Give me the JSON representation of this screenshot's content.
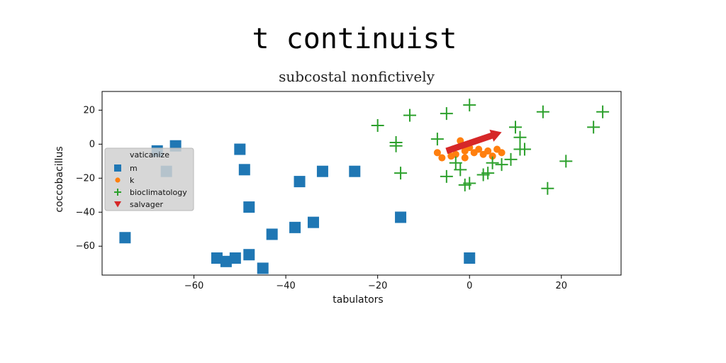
{
  "chart_data": {
    "type": "scatter",
    "title": "t continuist",
    "subtitle": "subcostal nonfictively",
    "xlabel": "tabulators",
    "ylabel": "coccobacillus",
    "xlim": [
      -80,
      33
    ],
    "ylim": [
      -77,
      31
    ],
    "xticks": [
      -60,
      -40,
      -20,
      0,
      20
    ],
    "yticks": [
      20,
      0,
      -20,
      -40,
      -60
    ],
    "xtick_labels": [
      "−60",
      "−40",
      "−20",
      "0",
      "20"
    ],
    "ytick_labels": [
      "20",
      "0",
      "−20",
      "−40",
      "−60"
    ],
    "grid": false,
    "legend": {
      "title": "vaticanize",
      "placement": "center-left"
    },
    "series": [
      {
        "name": "m",
        "marker": "square",
        "color": "#1f77b4",
        "points": [
          [
            -75,
            -55
          ],
          [
            -68,
            -4
          ],
          [
            -64,
            -1
          ],
          [
            -66,
            -16
          ],
          [
            -50,
            -3
          ],
          [
            -49,
            -15
          ],
          [
            -48,
            -37
          ],
          [
            -48,
            -65
          ],
          [
            -45,
            -73
          ],
          [
            -43,
            -53
          ],
          [
            -37,
            -22
          ],
          [
            -38,
            -49
          ],
          [
            -34,
            -46
          ],
          [
            -32,
            -16
          ],
          [
            -25,
            -16
          ],
          [
            -15,
            -43
          ],
          [
            -55,
            -67
          ],
          [
            -53,
            -69
          ],
          [
            -51,
            -67
          ],
          [
            0,
            -67
          ]
        ]
      },
      {
        "name": "k",
        "marker": "circle",
        "color": "#ff7f0e",
        "points": [
          [
            -7,
            -5
          ],
          [
            -6,
            -8
          ],
          [
            -3,
            -6
          ],
          [
            -2,
            2
          ],
          [
            -1,
            -4
          ],
          [
            0,
            -2
          ],
          [
            1,
            -5
          ],
          [
            2,
            -3
          ],
          [
            3,
            -6
          ],
          [
            4,
            -4
          ],
          [
            5,
            -7
          ],
          [
            6,
            -3
          ],
          [
            7,
            -5
          ],
          [
            -4,
            -7
          ],
          [
            -1,
            -8
          ]
        ]
      },
      {
        "name": "bioclimatology",
        "marker": "plus",
        "color": "#2ca02c",
        "points": [
          [
            -20,
            11
          ],
          [
            -13,
            17
          ],
          [
            -16,
            -1
          ],
          [
            -16,
            1
          ],
          [
            -15,
            -17
          ],
          [
            -7,
            3
          ],
          [
            -5,
            18
          ],
          [
            -5,
            -19
          ],
          [
            0,
            23
          ],
          [
            -3,
            -11
          ],
          [
            -2,
            -15
          ],
          [
            -1,
            -24
          ],
          [
            0,
            -23
          ],
          [
            3,
            -18
          ],
          [
            4,
            -17
          ],
          [
            5,
            -11
          ],
          [
            7,
            -12
          ],
          [
            9,
            -9
          ],
          [
            10,
            10
          ],
          [
            11,
            4
          ],
          [
            11,
            -3
          ],
          [
            12,
            -3
          ],
          [
            16,
            19
          ],
          [
            17,
            -26
          ],
          [
            21,
            -10
          ],
          [
            27,
            10
          ],
          [
            29,
            19
          ]
        ]
      },
      {
        "name": "salvager",
        "marker": "triangle-down",
        "color": "#d62728",
        "arrow": {
          "from": [
            -5,
            -4
          ],
          "to": [
            7,
            7
          ]
        }
      }
    ]
  }
}
